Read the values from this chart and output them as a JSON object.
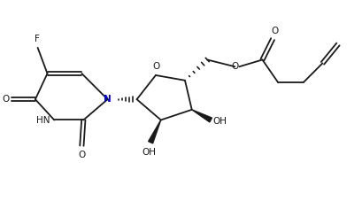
{
  "bg_color": "#ffffff",
  "line_color": "#1a1a1a",
  "text_color": "#1a1a1a",
  "label_color_N": "#0000cd",
  "figsize": [
    4.09,
    2.36
  ],
  "dpi": 100,
  "F_label": "F",
  "O_label": "O",
  "N_label": "N",
  "HN_label": "HN",
  "OH_label": "OH",
  "line_width": 1.3
}
